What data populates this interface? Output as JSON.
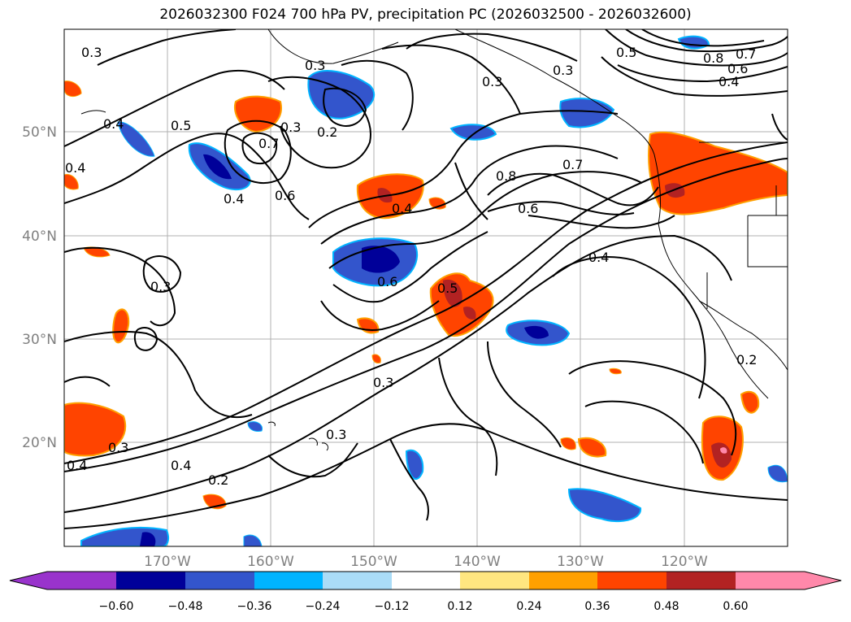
{
  "title": "2026032300 F024 700 hPa PV, precipitation PC (2026032500 - 2026032600)",
  "axes": {
    "lat_labels": [
      "50°N",
      "40°N",
      "30°N",
      "20°N"
    ],
    "lon_labels": [
      "170°W",
      "160°W",
      "150°W",
      "140°W",
      "130°W",
      "120°W"
    ]
  },
  "colorbar": {
    "ticks": [
      "−0.60",
      "−0.48",
      "−0.36",
      "−0.24",
      "−0.12",
      "0.12",
      "0.24",
      "0.36",
      "0.48",
      "0.60"
    ],
    "colors": [
      "#9933cc",
      "#000099",
      "#3355cc",
      "#00b4ff",
      "#aadcf7",
      "#ffffff",
      "#ffe680",
      "#ffa000",
      "#ff4400",
      "#b22222",
      "#ff88aa",
      "#ff88aa"
    ]
  },
  "contour_labels": [
    "0.3",
    "0.4",
    "0.5",
    "0.4",
    "0.3",
    "0.2",
    "0.7",
    "0.4",
    "0.6",
    "0.4",
    "0.5",
    "0.3",
    "0.8",
    "0.7",
    "0.6",
    "0.4",
    "0.3",
    "0.8",
    "0.7",
    "0.6",
    "0.4",
    "0.3",
    "0.6",
    "0.5",
    "0.3",
    "0.3",
    "0.3",
    "0.4",
    "0.2",
    "0.4",
    "0.2",
    "0.3"
  ]
}
